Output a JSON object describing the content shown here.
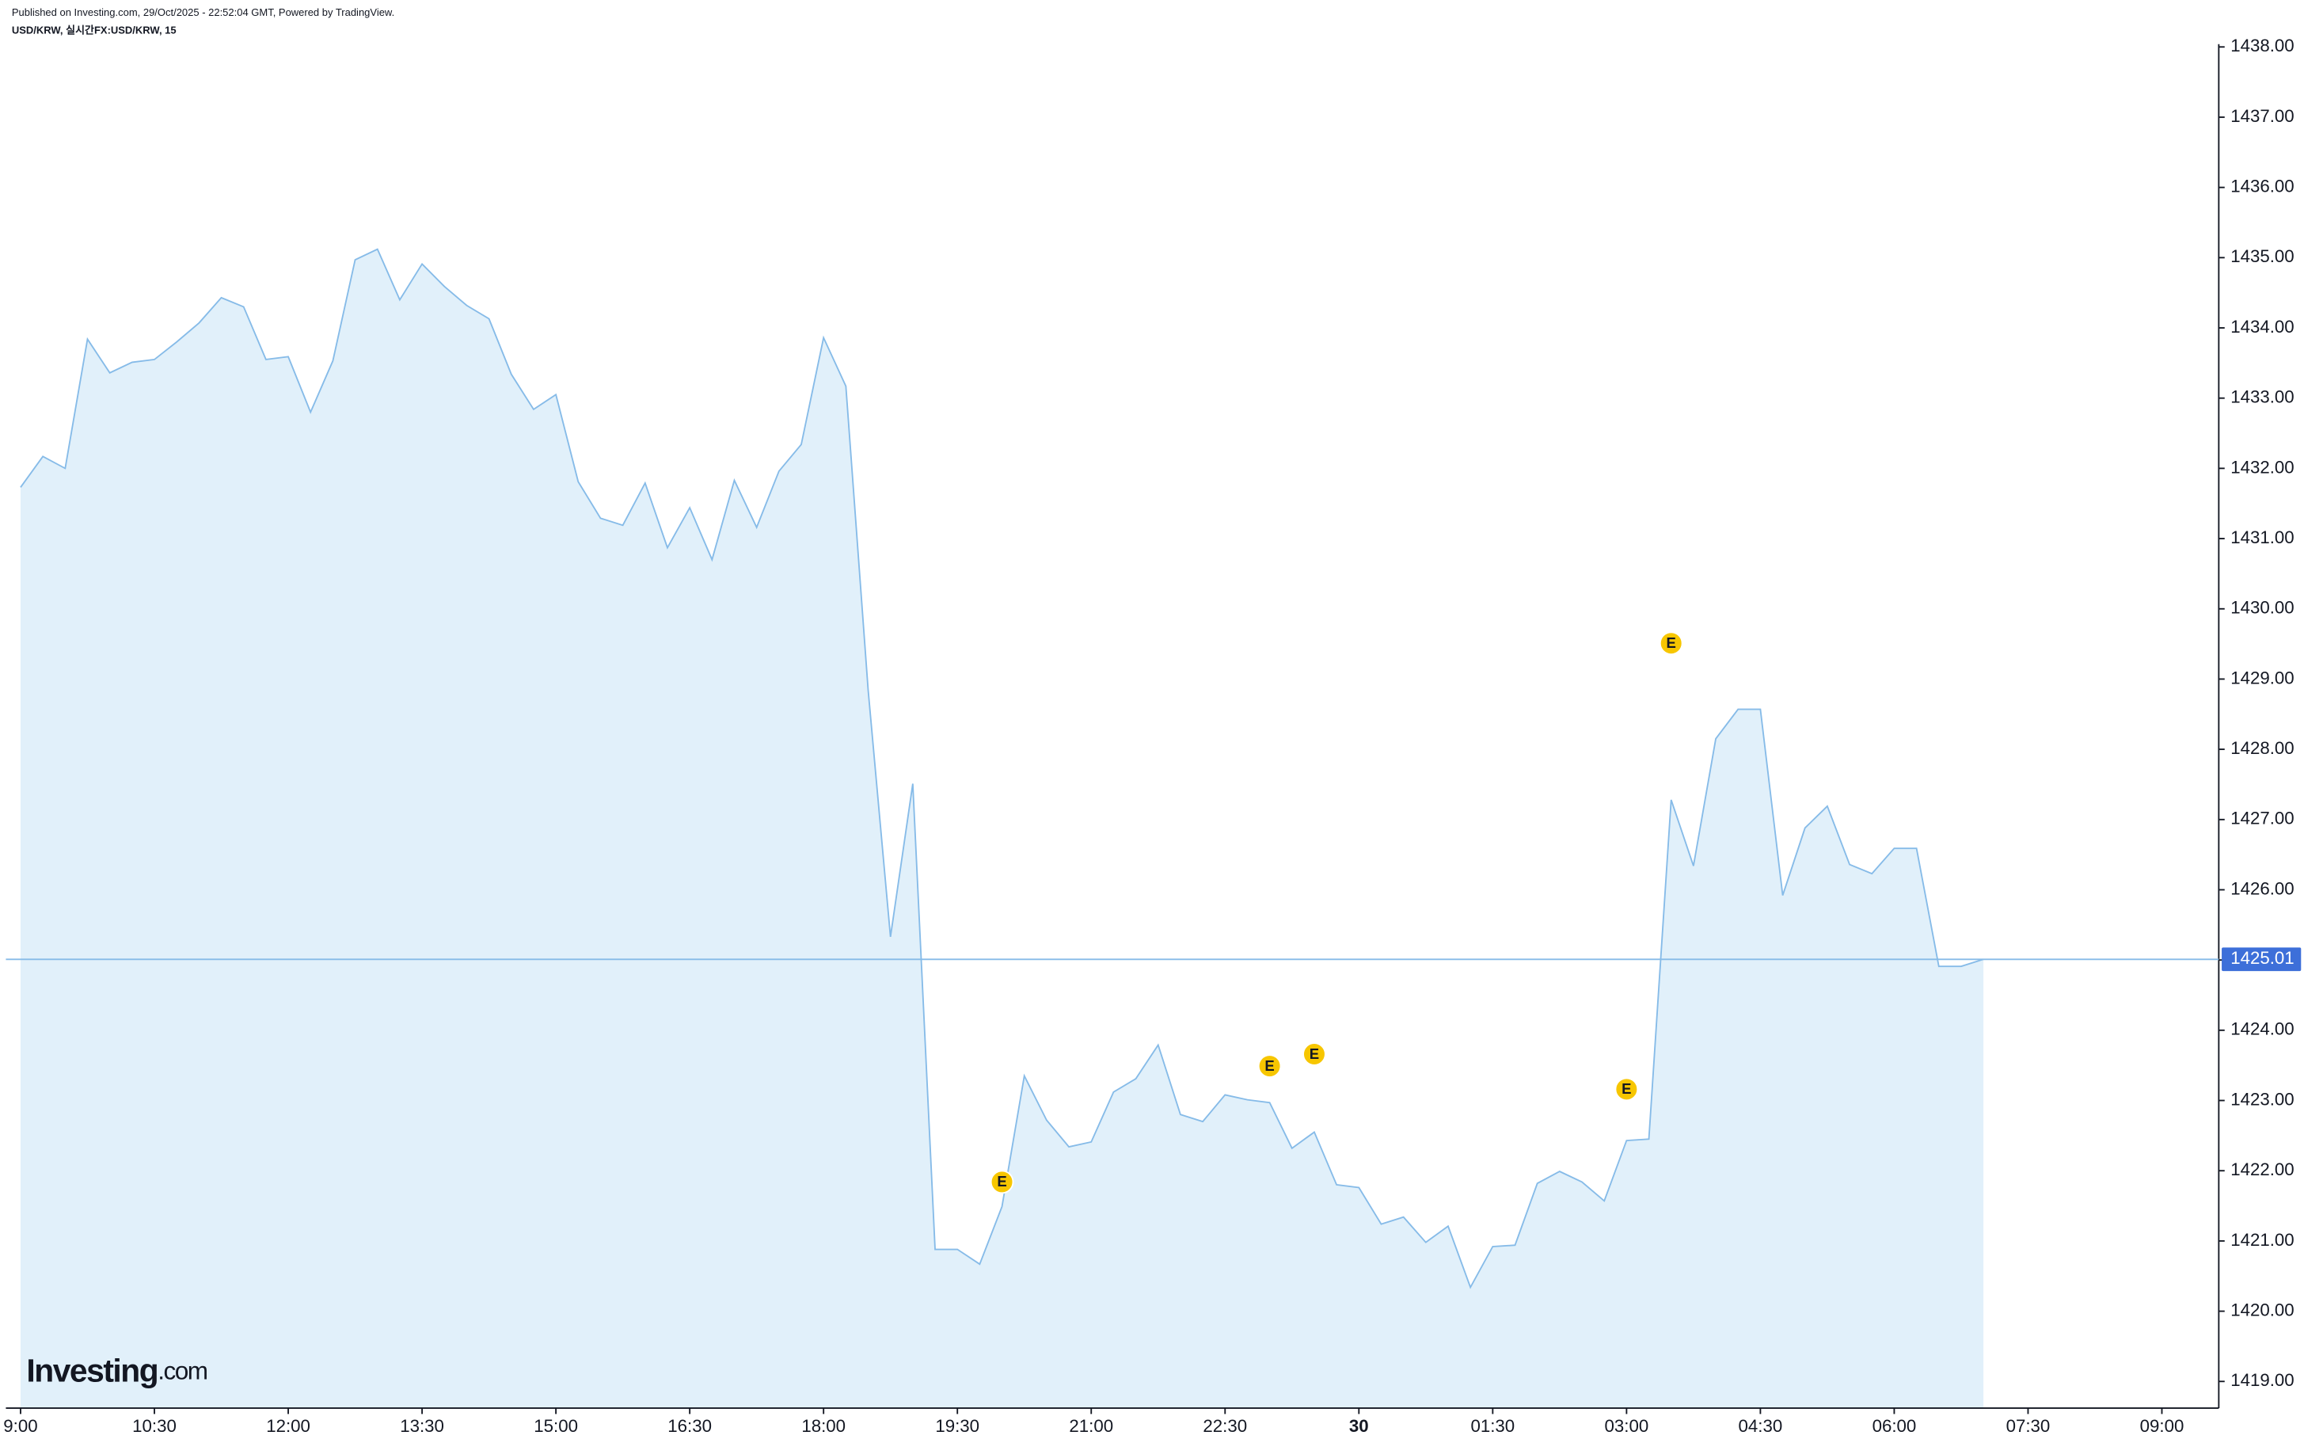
{
  "header": {
    "published": "Published on Investing.com, 29/Oct/2025 - 22:52:04 GMT, Powered by TradingView.",
    "symbol": "USD/KRW, 실시간FX:USD/KRW, 15"
  },
  "logo": {
    "name": "Investing",
    "suffix": ".com"
  },
  "chart_data": {
    "type": "area",
    "x": [
      "09:00",
      "09:15",
      "09:30",
      "09:45",
      "10:00",
      "10:15",
      "10:30",
      "10:45",
      "11:00",
      "11:15",
      "11:30",
      "11:45",
      "12:00",
      "12:15",
      "12:30",
      "12:45",
      "13:00",
      "13:15",
      "13:30",
      "13:45",
      "14:00",
      "14:15",
      "14:30",
      "14:45",
      "15:00",
      "15:15",
      "15:30",
      "15:45",
      "16:00",
      "16:15",
      "16:30",
      "16:45",
      "17:00",
      "17:15",
      "17:30",
      "17:45",
      "18:00",
      "18:15",
      "18:30",
      "18:45",
      "19:00",
      "19:15",
      "19:30",
      "19:45",
      "20:00",
      "20:15",
      "20:30",
      "20:45",
      "21:00",
      "21:15",
      "21:30",
      "21:45",
      "22:00",
      "22:15",
      "22:30",
      "22:45",
      "23:00",
      "23:15",
      "23:30",
      "23:45",
      "00:00",
      "00:15",
      "00:30",
      "00:45",
      "01:00",
      "01:15",
      "01:30",
      "01:45",
      "02:00",
      "02:15",
      "02:30",
      "02:45",
      "03:00",
      "03:15",
      "03:30",
      "03:45",
      "04:00",
      "04:15",
      "04:30",
      "04:45",
      "05:00",
      "05:15",
      "05:30",
      "05:45",
      "06:00",
      "06:15",
      "06:30",
      "06:45",
      "07:00"
    ],
    "series": [
      {
        "name": "USD/KRW",
        "color": "#86bbe8",
        "fill": "#e1f0fa",
        "values": [
          1431.73,
          1432.17,
          1432.0,
          1433.84,
          1433.36,
          1433.51,
          1433.55,
          1433.8,
          1434.07,
          1434.43,
          1434.3,
          1433.55,
          1433.59,
          1432.8,
          1433.53,
          1434.97,
          1435.12,
          1434.4,
          1434.91,
          1434.59,
          1434.32,
          1434.13,
          1433.34,
          1432.84,
          1433.05,
          1431.81,
          1431.29,
          1431.19,
          1431.79,
          1430.87,
          1431.44,
          1430.7,
          1431.83,
          1431.16,
          1431.96,
          1432.34,
          1433.86,
          1433.17,
          1428.84,
          1425.33,
          1427.51,
          1420.88,
          1420.88,
          1420.67,
          1421.49,
          1423.35,
          1422.72,
          1422.34,
          1422.41,
          1423.12,
          1423.31,
          1423.79,
          1422.8,
          1422.7,
          1423.08,
          1423.01,
          1422.97,
          1422.32,
          1422.55,
          1421.8,
          1421.76,
          1421.24,
          1421.34,
          1420.98,
          1421.21,
          1420.34,
          1420.92,
          1420.94,
          1421.82,
          1421.99,
          1421.84,
          1421.57,
          1422.43,
          1422.45,
          1427.28,
          1426.34,
          1428.15,
          1428.57,
          1428.57,
          1425.92,
          1426.88,
          1427.19,
          1426.36,
          1426.23,
          1426.59,
          1426.59,
          1424.91,
          1424.91,
          1425.01
        ]
      }
    ],
    "last_price": 1425.01,
    "last_price_color": "#3d6fd9",
    "events": [
      {
        "x": "20:00",
        "y": 1421.84,
        "label": "E"
      },
      {
        "x": "23:00",
        "y": 1423.49,
        "label": "E"
      },
      {
        "x": "23:30",
        "y": 1423.66,
        "label": "E"
      },
      {
        "x": "03:00",
        "y": 1423.16,
        "label": "E"
      },
      {
        "x": "03:30",
        "y": 1429.51,
        "label": "E"
      }
    ],
    "ylim": [
      1418.62,
      1438.04
    ],
    "yticks": [
      {
        "value": 1419,
        "label": "1419.00"
      },
      {
        "value": 1420,
        "label": "1420.00"
      },
      {
        "value": 1421,
        "label": "1421.00"
      },
      {
        "value": 1422,
        "label": "1422.00"
      },
      {
        "value": 1423,
        "label": "1423.00"
      },
      {
        "value": 1424,
        "label": "1424.00"
      },
      {
        "value": 1425,
        "label": "1425.00"
      },
      {
        "value": 1426,
        "label": "1426.00"
      },
      {
        "value": 1427,
        "label": "1427.00"
      },
      {
        "value": 1428,
        "label": "1428.00"
      },
      {
        "value": 1429,
        "label": "1429.00"
      },
      {
        "value": 1430,
        "label": "1430.00"
      },
      {
        "value": 1431,
        "label": "1431.00"
      },
      {
        "value": 1432,
        "label": "1432.00"
      },
      {
        "value": 1433,
        "label": "1433.00"
      },
      {
        "value": 1434,
        "label": "1434.00"
      },
      {
        "value": 1435,
        "label": "1435.00"
      },
      {
        "value": 1436,
        "label": "1436.00"
      },
      {
        "value": 1437,
        "label": "1437.00"
      },
      {
        "value": 1438,
        "label": "1438.00"
      }
    ],
    "xticks": [
      "9:00",
      "10:30",
      "12:00",
      "13:30",
      "15:00",
      "16:30",
      "18:00",
      "19:30",
      "21:00",
      "22:30",
      "30",
      "01:30",
      "03:00",
      "04:30",
      "06:00",
      "07:30",
      "09:00"
    ]
  }
}
